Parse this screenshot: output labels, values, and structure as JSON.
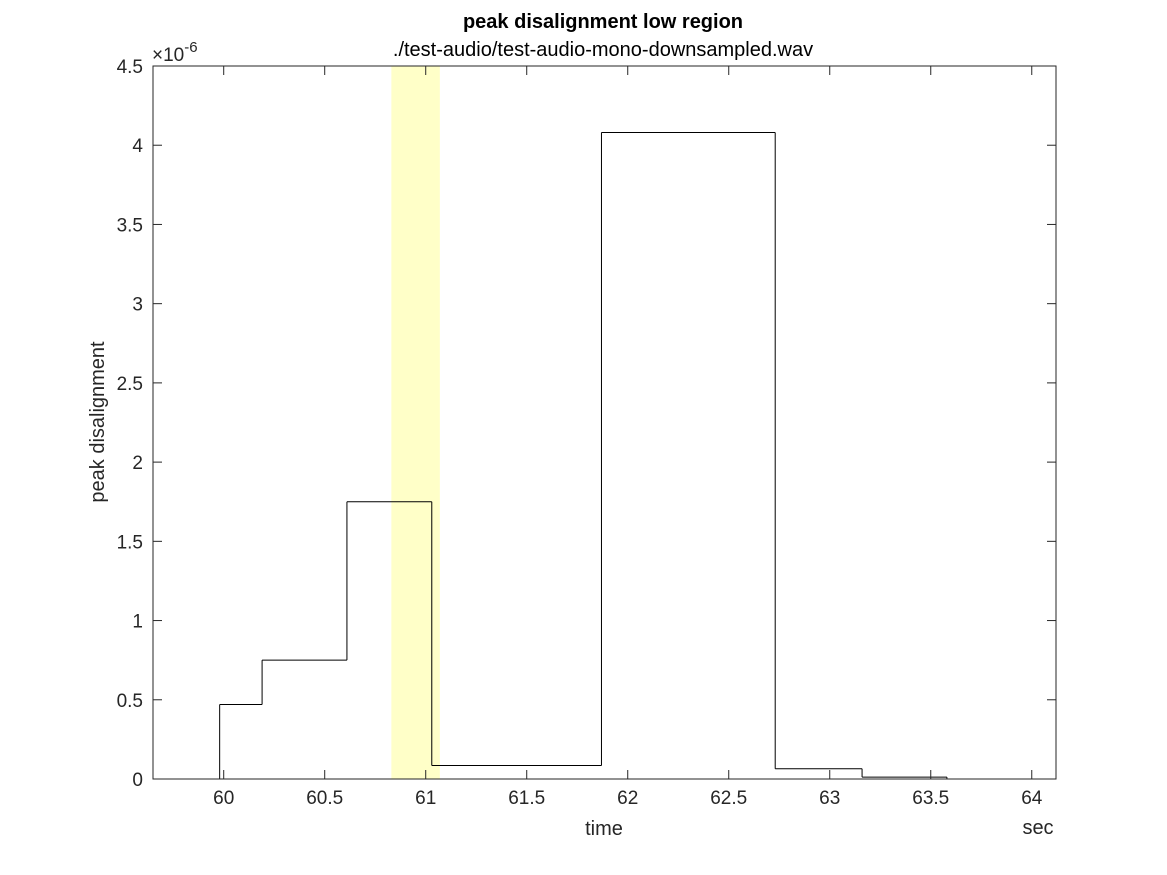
{
  "chart_data": {
    "type": "line",
    "step": true,
    "title": "peak disalignment low region",
    "subtitle": "./test-audio/test-audio-mono-downsampled.wav",
    "xlabel": "time",
    "xunit": "sec",
    "ylabel": "peak disalignment",
    "y_exponent_base": "×10",
    "y_exponent_power": "-6",
    "xlim": [
      59.65,
      64.12
    ],
    "ylim": [
      0,
      4.5
    ],
    "xticks": [
      60,
      60.5,
      61,
      61.5,
      62,
      62.5,
      63,
      63.5,
      64
    ],
    "xtick_labels": [
      "60",
      "60.5",
      "61",
      "61.5",
      "62",
      "62.5",
      "63",
      "63.5",
      "64"
    ],
    "yticks": [
      0,
      0.5,
      1,
      1.5,
      2,
      2.5,
      3,
      3.5,
      4,
      4.5
    ],
    "ytick_labels": [
      "0",
      "0.5",
      "1",
      "1.5",
      "2",
      "2.5",
      "3",
      "3.5",
      "4",
      "4.5"
    ],
    "grid": false,
    "highlight": {
      "x0": 60.83,
      "x1": 61.07,
      "color": "#ffffc8"
    },
    "line_color": "#000000",
    "segments": [
      {
        "x0": 59.77,
        "x1": 59.98,
        "y": 0
      },
      {
        "x0": 59.98,
        "x1": 60.19,
        "y": 0.47
      },
      {
        "x0": 60.19,
        "x1": 60.61,
        "y": 0.75
      },
      {
        "x0": 60.61,
        "x1": 61.03,
        "y": 1.75
      },
      {
        "x0": 61.03,
        "x1": 61.87,
        "y": 0.085
      },
      {
        "x0": 61.87,
        "x1": 62.73,
        "y": 4.08
      },
      {
        "x0": 62.73,
        "x1": 63.16,
        "y": 0.065
      },
      {
        "x0": 63.16,
        "x1": 63.58,
        "y": 0.012
      },
      {
        "x0": 63.58,
        "x1": 64.0,
        "y": 0.0
      }
    ]
  }
}
